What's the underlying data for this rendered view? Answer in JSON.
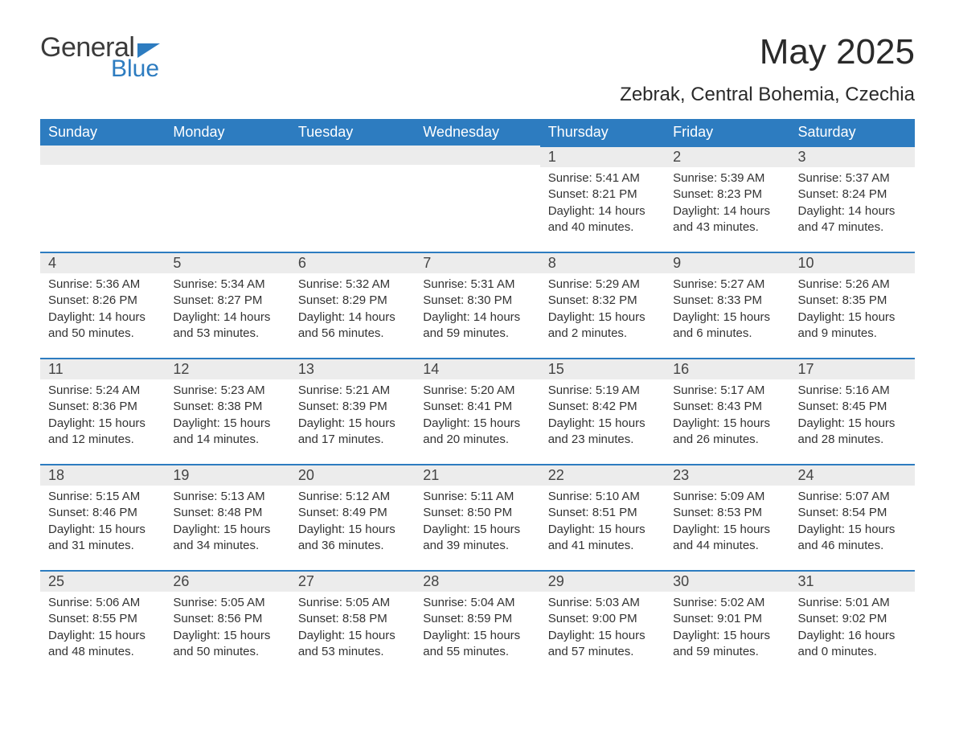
{
  "brand": {
    "general": "General",
    "blue": "Blue"
  },
  "title": "May 2025",
  "location": "Zebrak, Central Bohemia, Czechia",
  "colors": {
    "header_bg": "#2d7cc0",
    "header_text": "#ffffff",
    "daybar_bg": "#ececec",
    "daybar_border": "#2d7cc0",
    "body_bg": "#ffffff",
    "text": "#333333"
  },
  "weekdays": [
    "Sunday",
    "Monday",
    "Tuesday",
    "Wednesday",
    "Thursday",
    "Friday",
    "Saturday"
  ],
  "grid": [
    [
      null,
      null,
      null,
      null,
      {
        "n": "1",
        "sunrise": "Sunrise: 5:41 AM",
        "sunset": "Sunset: 8:21 PM",
        "daylight": "Daylight: 14 hours and 40 minutes."
      },
      {
        "n": "2",
        "sunrise": "Sunrise: 5:39 AM",
        "sunset": "Sunset: 8:23 PM",
        "daylight": "Daylight: 14 hours and 43 minutes."
      },
      {
        "n": "3",
        "sunrise": "Sunrise: 5:37 AM",
        "sunset": "Sunset: 8:24 PM",
        "daylight": "Daylight: 14 hours and 47 minutes."
      }
    ],
    [
      {
        "n": "4",
        "sunrise": "Sunrise: 5:36 AM",
        "sunset": "Sunset: 8:26 PM",
        "daylight": "Daylight: 14 hours and 50 minutes."
      },
      {
        "n": "5",
        "sunrise": "Sunrise: 5:34 AM",
        "sunset": "Sunset: 8:27 PM",
        "daylight": "Daylight: 14 hours and 53 minutes."
      },
      {
        "n": "6",
        "sunrise": "Sunrise: 5:32 AM",
        "sunset": "Sunset: 8:29 PM",
        "daylight": "Daylight: 14 hours and 56 minutes."
      },
      {
        "n": "7",
        "sunrise": "Sunrise: 5:31 AM",
        "sunset": "Sunset: 8:30 PM",
        "daylight": "Daylight: 14 hours and 59 minutes."
      },
      {
        "n": "8",
        "sunrise": "Sunrise: 5:29 AM",
        "sunset": "Sunset: 8:32 PM",
        "daylight": "Daylight: 15 hours and 2 minutes."
      },
      {
        "n": "9",
        "sunrise": "Sunrise: 5:27 AM",
        "sunset": "Sunset: 8:33 PM",
        "daylight": "Daylight: 15 hours and 6 minutes."
      },
      {
        "n": "10",
        "sunrise": "Sunrise: 5:26 AM",
        "sunset": "Sunset: 8:35 PM",
        "daylight": "Daylight: 15 hours and 9 minutes."
      }
    ],
    [
      {
        "n": "11",
        "sunrise": "Sunrise: 5:24 AM",
        "sunset": "Sunset: 8:36 PM",
        "daylight": "Daylight: 15 hours and 12 minutes."
      },
      {
        "n": "12",
        "sunrise": "Sunrise: 5:23 AM",
        "sunset": "Sunset: 8:38 PM",
        "daylight": "Daylight: 15 hours and 14 minutes."
      },
      {
        "n": "13",
        "sunrise": "Sunrise: 5:21 AM",
        "sunset": "Sunset: 8:39 PM",
        "daylight": "Daylight: 15 hours and 17 minutes."
      },
      {
        "n": "14",
        "sunrise": "Sunrise: 5:20 AM",
        "sunset": "Sunset: 8:41 PM",
        "daylight": "Daylight: 15 hours and 20 minutes."
      },
      {
        "n": "15",
        "sunrise": "Sunrise: 5:19 AM",
        "sunset": "Sunset: 8:42 PM",
        "daylight": "Daylight: 15 hours and 23 minutes."
      },
      {
        "n": "16",
        "sunrise": "Sunrise: 5:17 AM",
        "sunset": "Sunset: 8:43 PM",
        "daylight": "Daylight: 15 hours and 26 minutes."
      },
      {
        "n": "17",
        "sunrise": "Sunrise: 5:16 AM",
        "sunset": "Sunset: 8:45 PM",
        "daylight": "Daylight: 15 hours and 28 minutes."
      }
    ],
    [
      {
        "n": "18",
        "sunrise": "Sunrise: 5:15 AM",
        "sunset": "Sunset: 8:46 PM",
        "daylight": "Daylight: 15 hours and 31 minutes."
      },
      {
        "n": "19",
        "sunrise": "Sunrise: 5:13 AM",
        "sunset": "Sunset: 8:48 PM",
        "daylight": "Daylight: 15 hours and 34 minutes."
      },
      {
        "n": "20",
        "sunrise": "Sunrise: 5:12 AM",
        "sunset": "Sunset: 8:49 PM",
        "daylight": "Daylight: 15 hours and 36 minutes."
      },
      {
        "n": "21",
        "sunrise": "Sunrise: 5:11 AM",
        "sunset": "Sunset: 8:50 PM",
        "daylight": "Daylight: 15 hours and 39 minutes."
      },
      {
        "n": "22",
        "sunrise": "Sunrise: 5:10 AM",
        "sunset": "Sunset: 8:51 PM",
        "daylight": "Daylight: 15 hours and 41 minutes."
      },
      {
        "n": "23",
        "sunrise": "Sunrise: 5:09 AM",
        "sunset": "Sunset: 8:53 PM",
        "daylight": "Daylight: 15 hours and 44 minutes."
      },
      {
        "n": "24",
        "sunrise": "Sunrise: 5:07 AM",
        "sunset": "Sunset: 8:54 PM",
        "daylight": "Daylight: 15 hours and 46 minutes."
      }
    ],
    [
      {
        "n": "25",
        "sunrise": "Sunrise: 5:06 AM",
        "sunset": "Sunset: 8:55 PM",
        "daylight": "Daylight: 15 hours and 48 minutes."
      },
      {
        "n": "26",
        "sunrise": "Sunrise: 5:05 AM",
        "sunset": "Sunset: 8:56 PM",
        "daylight": "Daylight: 15 hours and 50 minutes."
      },
      {
        "n": "27",
        "sunrise": "Sunrise: 5:05 AM",
        "sunset": "Sunset: 8:58 PM",
        "daylight": "Daylight: 15 hours and 53 minutes."
      },
      {
        "n": "28",
        "sunrise": "Sunrise: 5:04 AM",
        "sunset": "Sunset: 8:59 PM",
        "daylight": "Daylight: 15 hours and 55 minutes."
      },
      {
        "n": "29",
        "sunrise": "Sunrise: 5:03 AM",
        "sunset": "Sunset: 9:00 PM",
        "daylight": "Daylight: 15 hours and 57 minutes."
      },
      {
        "n": "30",
        "sunrise": "Sunrise: 5:02 AM",
        "sunset": "Sunset: 9:01 PM",
        "daylight": "Daylight: 15 hours and 59 minutes."
      },
      {
        "n": "31",
        "sunrise": "Sunrise: 5:01 AM",
        "sunset": "Sunset: 9:02 PM",
        "daylight": "Daylight: 16 hours and 0 minutes."
      }
    ]
  ]
}
